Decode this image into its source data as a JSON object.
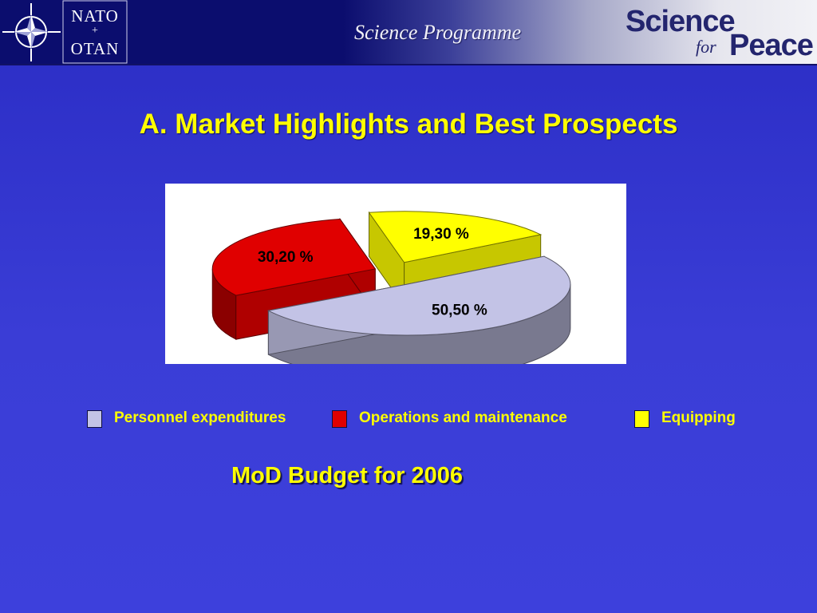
{
  "header": {
    "nato_line1": "NATO",
    "nato_separator": "+",
    "nato_line2": "OTAN",
    "programme": "Science Programme",
    "sfp_science": "Science",
    "sfp_for": "for",
    "sfp_peace": "Peace"
  },
  "slide": {
    "title": "A. Market Highlights and Best Prospects",
    "subtitle": "MoD Budget for 2006"
  },
  "colors": {
    "title_text": "#ffff00",
    "background": "#3a3dd6",
    "personnel": "#c3c3e6",
    "operations": "#e00000",
    "equipping": "#ffff00"
  },
  "chart_data": {
    "type": "pie",
    "style": "3d-exploded",
    "slices": [
      {
        "name": "Personnel expenditures",
        "value": 50.5,
        "label": "50,50 %",
        "color": "#c3c3e6"
      },
      {
        "name": "Operations and maintenance",
        "value": 30.2,
        "label": "30,20 %",
        "color": "#e00000"
      },
      {
        "name": "Equipping",
        "value": 19.3,
        "label": "19,30 %",
        "color": "#ffff00"
      }
    ],
    "legend_position": "bottom",
    "legend": [
      {
        "label": "Personnel expenditures",
        "color": "#c3c3e6"
      },
      {
        "label": "Operations and maintenance",
        "color": "#e00000"
      },
      {
        "label": "Equipping",
        "color": "#ffff00"
      }
    ]
  }
}
